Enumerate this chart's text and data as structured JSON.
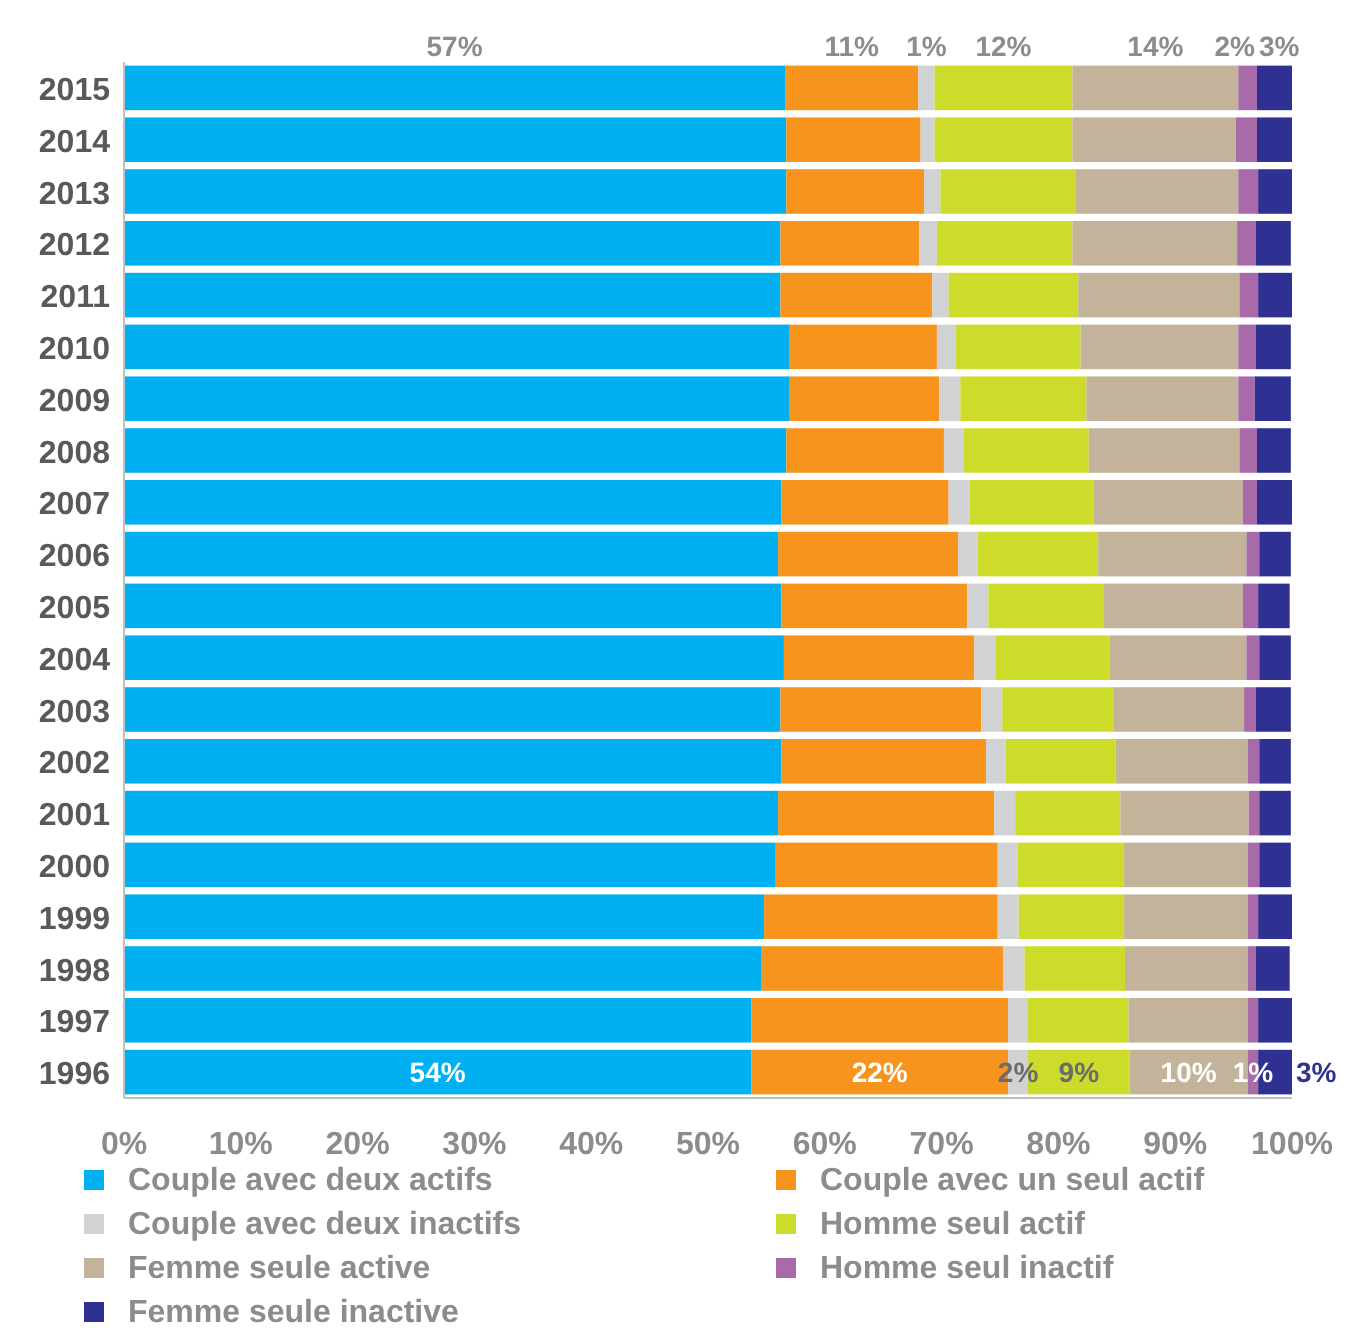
{
  "chart_data": {
    "type": "bar",
    "orientation": "horizontal",
    "stacked": true,
    "categories": [
      "2015",
      "2014",
      "2013",
      "2012",
      "2011",
      "2010",
      "2009",
      "2008",
      "2007",
      "2006",
      "2005",
      "2004",
      "2003",
      "2002",
      "2001",
      "2000",
      "1999",
      "1998",
      "1997",
      "1996"
    ],
    "xlim": [
      0,
      100
    ],
    "xticks": [
      {
        "value": 0,
        "label": "0%"
      },
      {
        "value": 10,
        "label": "10%"
      },
      {
        "value": 20,
        "label": "20%"
      },
      {
        "value": 30,
        "label": "30%"
      },
      {
        "value": 40,
        "label": "40%"
      },
      {
        "value": 50,
        "label": "50%"
      },
      {
        "value": 60,
        "label": "60%"
      },
      {
        "value": 70,
        "label": "70%"
      },
      {
        "value": 80,
        "label": "80%"
      },
      {
        "value": 90,
        "label": "90%"
      },
      {
        "value": 100,
        "label": "100%"
      }
    ],
    "grid": false,
    "legend": "bottom",
    "series": [
      {
        "name": "Couple avec deux actifs",
        "color": "#00b0f0",
        "values": [
          56.6,
          56.7,
          56.7,
          56.2,
          56.2,
          57.0,
          57.0,
          56.7,
          56.3,
          56.0,
          56.3,
          56.5,
          56.2,
          56.3,
          56.0,
          55.8,
          54.8,
          54.6,
          53.7,
          53.7
        ],
        "value_labels": [
          "57%",
          null,
          null,
          null,
          null,
          null,
          null,
          null,
          null,
          null,
          null,
          null,
          null,
          null,
          null,
          null,
          null,
          null,
          null,
          "54%"
        ]
      },
      {
        "name": "Couple avec un seul actif",
        "color": "#f7941d",
        "values": [
          11.4,
          11.5,
          11.8,
          11.9,
          13.0,
          12.6,
          12.8,
          13.5,
          14.3,
          15.4,
          15.9,
          16.3,
          17.2,
          17.5,
          18.5,
          19.0,
          20.0,
          20.7,
          22.0,
          22.0
        ],
        "value_labels": [
          "11%",
          null,
          null,
          null,
          null,
          null,
          null,
          null,
          null,
          null,
          null,
          null,
          null,
          null,
          null,
          null,
          null,
          null,
          null,
          "22%"
        ]
      },
      {
        "name": "Couple avec deux inactifs",
        "color": "#d0d2d3",
        "values": [
          1.4,
          1.2,
          1.4,
          1.5,
          1.4,
          1.6,
          1.8,
          1.7,
          1.8,
          1.7,
          1.8,
          1.8,
          1.8,
          1.7,
          1.8,
          1.7,
          1.8,
          1.8,
          1.7,
          1.7
        ],
        "value_labels": [
          "1%",
          null,
          null,
          null,
          null,
          null,
          null,
          null,
          null,
          null,
          null,
          null,
          null,
          null,
          null,
          null,
          null,
          null,
          null,
          "2%"
        ]
      },
      {
        "name": "Homme seul actif",
        "color": "#cddc2b",
        "values": [
          11.8,
          11.8,
          11.6,
          11.6,
          11.1,
          10.7,
          10.8,
          10.7,
          10.6,
          10.3,
          9.9,
          9.8,
          9.5,
          9.4,
          9.0,
          9.1,
          9.0,
          8.6,
          8.6,
          8.7
        ],
        "value_labels": [
          "12%",
          null,
          null,
          null,
          null,
          null,
          null,
          null,
          null,
          null,
          null,
          null,
          null,
          null,
          null,
          null,
          null,
          null,
          null,
          "9%"
        ]
      },
      {
        "name": "Femme seule active",
        "color": "#c4b39b",
        "values": [
          14.2,
          14.0,
          13.9,
          14.1,
          13.8,
          13.5,
          13.0,
          12.9,
          12.8,
          12.7,
          11.9,
          11.7,
          11.2,
          11.3,
          11.0,
          10.6,
          10.6,
          10.5,
          10.2,
          10.1
        ],
        "value_labels": [
          "14%",
          null,
          null,
          null,
          null,
          null,
          null,
          null,
          null,
          null,
          null,
          null,
          null,
          null,
          null,
          null,
          null,
          null,
          null,
          "10%"
        ]
      },
      {
        "name": "Homme seul inactif",
        "color": "#a86aa8",
        "values": [
          1.6,
          1.8,
          1.7,
          1.6,
          1.6,
          1.5,
          1.4,
          1.5,
          1.2,
          1.1,
          1.3,
          1.1,
          1.0,
          1.0,
          0.9,
          1.0,
          0.9,
          0.7,
          0.9,
          0.9
        ],
        "value_labels": [
          "2%",
          null,
          null,
          null,
          null,
          null,
          null,
          null,
          null,
          null,
          null,
          null,
          null,
          null,
          null,
          null,
          null,
          null,
          null,
          "1%"
        ]
      },
      {
        "name": "Femme seule inactive",
        "color": "#2e3192",
        "values": [
          3.0,
          3.0,
          2.9,
          3.0,
          2.9,
          3.0,
          3.1,
          2.9,
          3.0,
          2.7,
          2.7,
          2.7,
          3.0,
          2.7,
          2.7,
          2.7,
          2.9,
          2.9,
          2.9,
          2.9
        ],
        "value_labels": [
          "3%",
          null,
          null,
          null,
          null,
          null,
          null,
          null,
          null,
          null,
          null,
          null,
          null,
          null,
          null,
          null,
          null,
          null,
          null,
          "3%"
        ]
      }
    ]
  }
}
